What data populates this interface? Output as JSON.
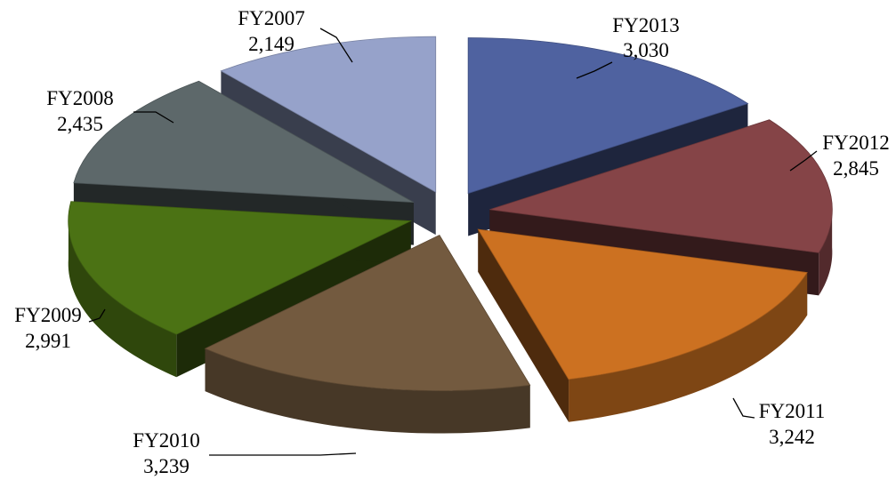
{
  "chart_data": {
    "type": "pie",
    "title": "",
    "slices": [
      {
        "label": "FY2013",
        "value": 3030,
        "value_text": "3,030",
        "color": "#4F62A0"
      },
      {
        "label": "FY2012",
        "value": 2845,
        "value_text": "2,845",
        "color": "#854447"
      },
      {
        "label": "FY2011",
        "value": 3242,
        "value_text": "3,242",
        "color": "#CC7121"
      },
      {
        "label": "FY2010",
        "value": 3239,
        "value_text": "3,239",
        "color": "#735A3F"
      },
      {
        "label": "FY2009",
        "value": 2991,
        "value_text": "2,991",
        "color": "#4B7214"
      },
      {
        "label": "FY2008",
        "value": 2435,
        "value_text": "2,435",
        "color": "#5D686A"
      },
      {
        "label": "FY2007",
        "value": 2149,
        "value_text": "2,149",
        "color": "#96A2CA"
      }
    ],
    "legend": "none",
    "style": "3d-exploded-pie"
  }
}
